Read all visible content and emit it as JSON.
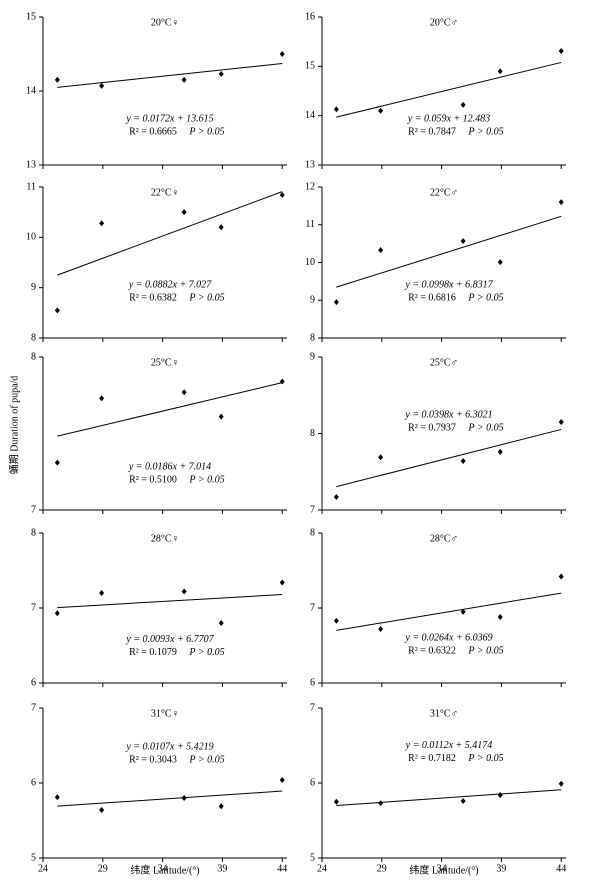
{
  "chart_data": [
    {
      "type": "scatter",
      "title": "20°C♀",
      "x": [
        25.2,
        28.9,
        35.8,
        38.9,
        44.0
      ],
      "values": [
        14.15,
        14.07,
        14.15,
        14.23,
        14.5
      ],
      "trendline": {
        "slope": 0.0172,
        "intercept": 13.615
      },
      "equation": "y = 0.0172x + 13.615",
      "r2_label": "R² = 0.6665",
      "p_label": "P > 0.05",
      "xlim": [
        24,
        44.4
      ],
      "xticks": [
        24,
        29,
        34,
        39,
        44
      ],
      "ylim": [
        13,
        15
      ],
      "yticks": [
        13,
        14,
        15
      ],
      "color": "#000000"
    },
    {
      "type": "scatter",
      "title": "20°C♂",
      "x": [
        25.2,
        28.9,
        35.8,
        38.9,
        44.0
      ],
      "values": [
        14.13,
        14.1,
        14.22,
        14.9,
        15.31
      ],
      "trendline": {
        "slope": 0.059,
        "intercept": 12.483
      },
      "equation": "y = 0.059x + 12.483",
      "r2_label": "R² = 0.7847",
      "p_label": "P > 0.05",
      "xlim": [
        24,
        44.4
      ],
      "xticks": [
        24,
        29,
        34,
        39,
        44
      ],
      "ylim": [
        13,
        16
      ],
      "yticks": [
        13,
        14,
        15,
        16
      ],
      "color": "#000000"
    },
    {
      "type": "scatter",
      "title": "22°C♀",
      "x": [
        25.2,
        28.9,
        35.8,
        38.9,
        44.0
      ],
      "values": [
        8.55,
        10.28,
        10.5,
        10.2,
        10.84
      ],
      "trendline": {
        "slope": 0.0882,
        "intercept": 7.027
      },
      "equation": "y = 0.0882x + 7.027",
      "r2_label": "R² = 0.6382",
      "p_label": "P > 0.05",
      "xlim": [
        24,
        44.4
      ],
      "xticks": [
        24,
        29,
        34,
        39,
        44
      ],
      "ylim": [
        8,
        11
      ],
      "yticks": [
        8,
        9,
        10,
        11
      ],
      "color": "#000000"
    },
    {
      "type": "scatter",
      "title": "22°C♂",
      "x": [
        25.2,
        28.9,
        35.8,
        38.9,
        44.0
      ],
      "values": [
        8.95,
        10.33,
        10.57,
        10.01,
        11.6
      ],
      "trendline": {
        "slope": 0.0998,
        "intercept": 6.8317
      },
      "equation": "y = 0.0998x + 6.8317",
      "r2_label": "R² = 0.6816",
      "p_label": "P > 0.05",
      "xlim": [
        24,
        44.4
      ],
      "xticks": [
        24,
        29,
        34,
        39,
        44
      ],
      "ylim": [
        8,
        12
      ],
      "yticks": [
        8,
        9,
        10,
        11,
        12
      ],
      "color": "#000000"
    },
    {
      "type": "scatter",
      "title": "25°C♀",
      "ylabel": "蛹期 Duration of pupa/d",
      "x": [
        25.2,
        28.9,
        35.8,
        38.9,
        44.0
      ],
      "values": [
        7.31,
        7.73,
        7.77,
        7.61,
        7.84
      ],
      "trendline": {
        "slope": 0.0186,
        "intercept": 7.014
      },
      "equation": "y = 0.0186x + 7.014",
      "r2_label": "R² = 0.5100",
      "p_label": "P > 0.05",
      "xlim": [
        24,
        44.4
      ],
      "xticks": [
        24,
        29,
        34,
        39,
        44
      ],
      "ylim": [
        7,
        8
      ],
      "yticks": [
        7,
        8
      ],
      "color": "#000000"
    },
    {
      "type": "scatter",
      "title": "25°C♂",
      "x": [
        25.2,
        28.9,
        35.8,
        38.9,
        44.0
      ],
      "values": [
        7.17,
        7.69,
        7.64,
        7.76,
        8.15
      ],
      "trendline": {
        "slope": 0.0398,
        "intercept": 6.3021
      },
      "equation": "y = 0.0398x + 6.3021",
      "r2_label": "R² = 0.7937",
      "p_label": "P > 0.05",
      "xlim": [
        24,
        44.4
      ],
      "xticks": [
        24,
        29,
        34,
        39,
        44
      ],
      "ylim": [
        7,
        9
      ],
      "yticks": [
        7,
        8,
        9
      ],
      "color": "#000000"
    },
    {
      "type": "scatter",
      "title": "28°C♀",
      "x": [
        25.2,
        28.9,
        35.8,
        38.9,
        44.0
      ],
      "values": [
        6.93,
        7.2,
        7.22,
        6.8,
        7.34
      ],
      "trendline": {
        "slope": 0.0093,
        "intercept": 6.7707
      },
      "equation": "y = 0.0093x + 6.7707",
      "r2_label": "R² = 0.1079",
      "p_label": "P > 0.05",
      "xlim": [
        24,
        44.4
      ],
      "xticks": [
        24,
        29,
        34,
        39,
        44
      ],
      "ylim": [
        6,
        8
      ],
      "yticks": [
        6,
        7,
        8
      ],
      "color": "#000000"
    },
    {
      "type": "scatter",
      "title": "28°C♂",
      "x": [
        25.2,
        28.9,
        35.8,
        38.9,
        44.0
      ],
      "values": [
        6.83,
        6.72,
        6.95,
        6.88,
        7.42
      ],
      "trendline": {
        "slope": 0.0264,
        "intercept": 6.0369
      },
      "equation": "y = 0.0264x + 6.0369",
      "r2_label": "R² = 0.6322",
      "p_label": "P > 0.05",
      "xlim": [
        24,
        44.4
      ],
      "xticks": [
        24,
        29,
        34,
        39,
        44
      ],
      "ylim": [
        6,
        8
      ],
      "yticks": [
        6,
        7,
        8
      ],
      "color": "#000000"
    },
    {
      "type": "scatter",
      "title": "31°C♀",
      "xlabel": "纬度 Latitude/(°)",
      "x": [
        25.2,
        28.9,
        35.8,
        38.9,
        44.0
      ],
      "values": [
        5.81,
        5.64,
        5.8,
        5.69,
        6.04
      ],
      "trendline": {
        "slope": 0.0107,
        "intercept": 5.4219
      },
      "equation": "y = 0.0107x + 5.4219",
      "r2_label": "R² = 0.3043",
      "p_label": "P > 0.05",
      "xlim": [
        24,
        44.4
      ],
      "xticks": [
        24,
        29,
        34,
        39,
        44
      ],
      "ylim": [
        5,
        7
      ],
      "yticks": [
        5,
        6,
        7
      ],
      "color": "#000000"
    },
    {
      "type": "scatter",
      "title": "31°C♂",
      "xlabel": "纬度 Latitude/(°)",
      "x": [
        25.2,
        28.9,
        35.8,
        38.9,
        44.0
      ],
      "values": [
        5.75,
        5.73,
        5.76,
        5.84,
        5.99
      ],
      "trendline": {
        "slope": 0.0112,
        "intercept": 5.4174
      },
      "equation": "y = 0.0112x + 5.4174",
      "r2_label": "R² = 0.7182",
      "p_label": "P > 0.05",
      "xlim": [
        24,
        44.4
      ],
      "xticks": [
        24,
        29,
        34,
        39,
        44
      ],
      "ylim": [
        5,
        7
      ],
      "yticks": [
        5,
        6,
        7
      ],
      "color": "#000000"
    }
  ]
}
